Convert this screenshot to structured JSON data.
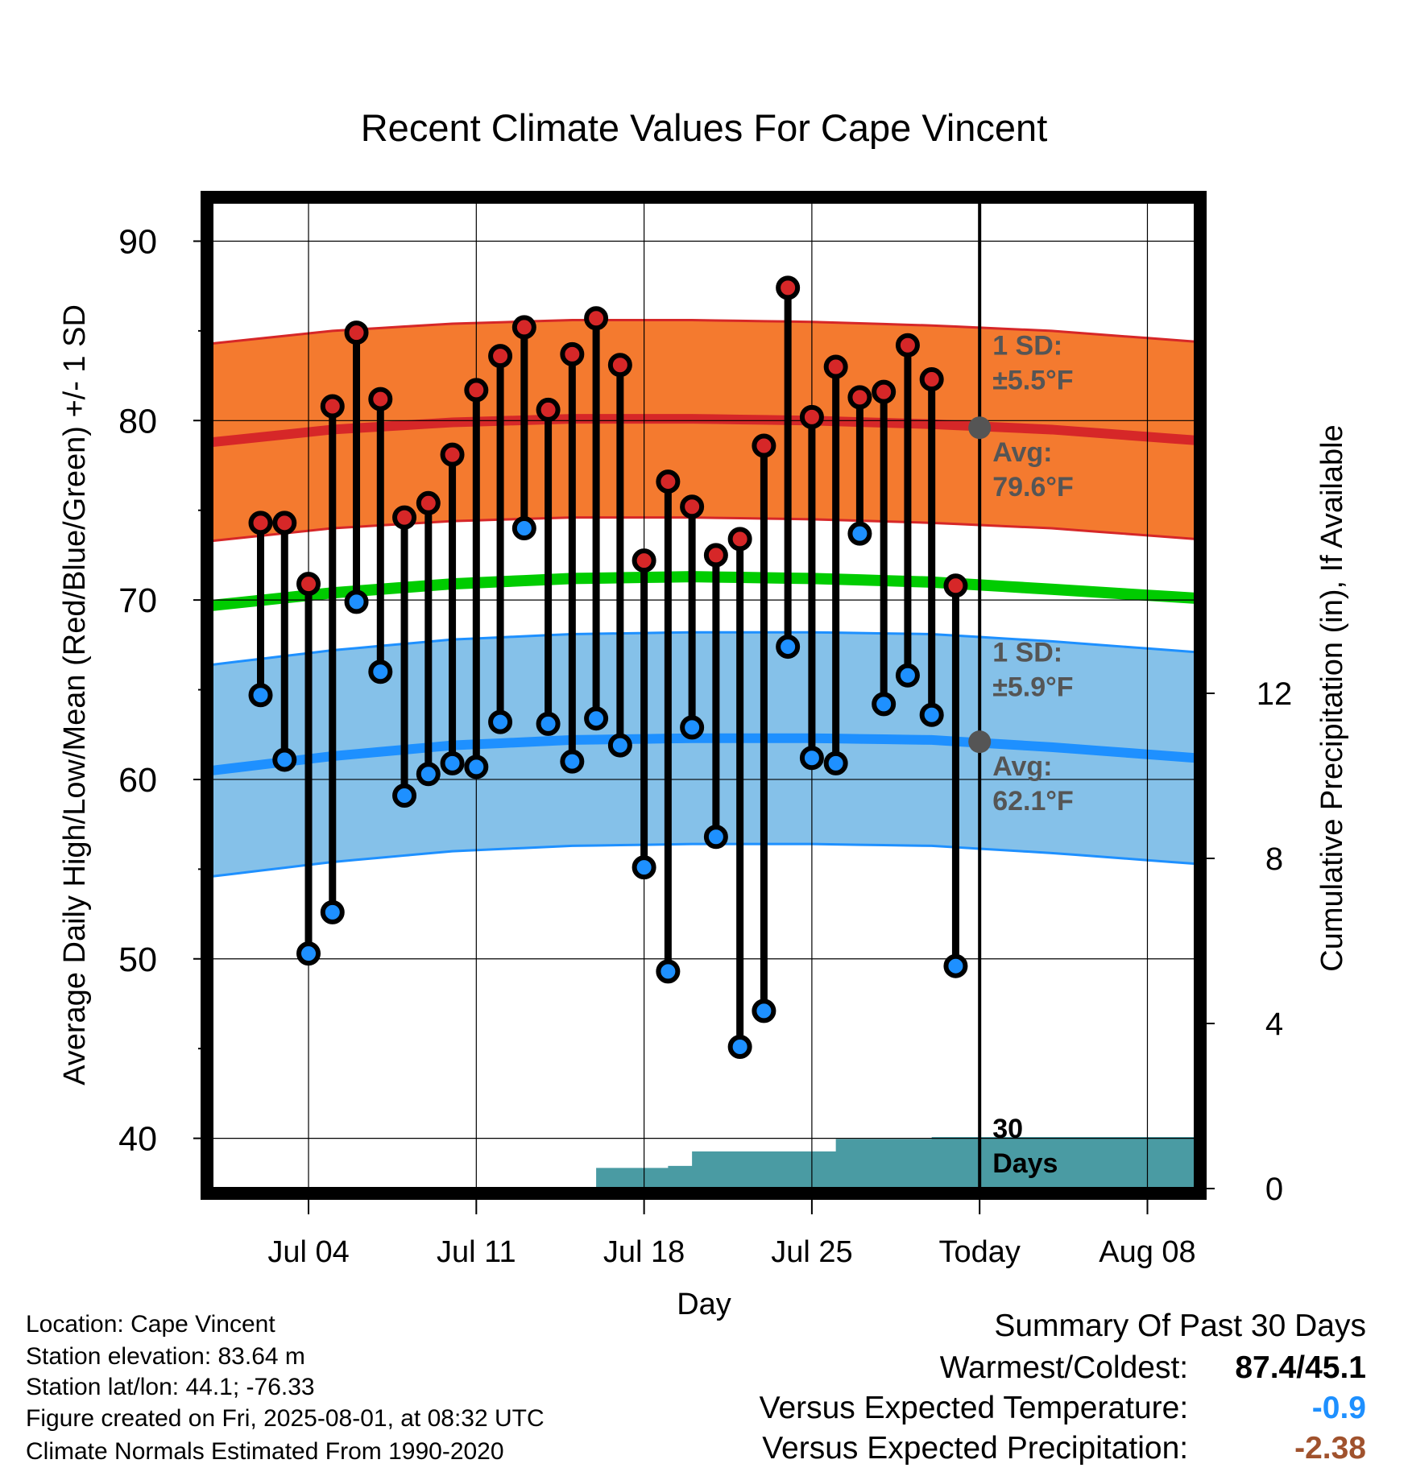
{
  "chart_data": {
    "type": "line",
    "title": "Recent Climate Values For Cape Vincent",
    "xlabel": "Day",
    "ylabel": "Average Daily High/Low/Mean (Red/Blue/Green) +/- 1 SD",
    "y2label": "Cumulative Precipitation (in), If Available",
    "ylim": [
      37.2,
      92.4
    ],
    "y_ticks": [
      40,
      50,
      60,
      70,
      80,
      90
    ],
    "y2lim": [
      0,
      24
    ],
    "y2_ticks": [
      0,
      4,
      8,
      12
    ],
    "xlim": [
      "2025-06-30",
      "2025-08-10"
    ],
    "x_ticks": [
      {
        "date": "2025-07-04",
        "label": "Jul 04"
      },
      {
        "date": "2025-07-11",
        "label": "Jul 11"
      },
      {
        "date": "2025-07-18",
        "label": "Jul 18"
      },
      {
        "date": "2025-07-25",
        "label": "Jul 25"
      },
      {
        "date": "2025-08-01",
        "label": "Today"
      },
      {
        "date": "2025-08-08",
        "label": "Aug 08"
      }
    ],
    "today": "2025-08-01",
    "grid": true,
    "days": [
      "2025-07-02",
      "2025-07-03",
      "2025-07-04",
      "2025-07-05",
      "2025-07-06",
      "2025-07-07",
      "2025-07-08",
      "2025-07-09",
      "2025-07-10",
      "2025-07-11",
      "2025-07-12",
      "2025-07-13",
      "2025-07-14",
      "2025-07-15",
      "2025-07-16",
      "2025-07-17",
      "2025-07-18",
      "2025-07-19",
      "2025-07-20",
      "2025-07-21",
      "2025-07-22",
      "2025-07-23",
      "2025-07-24",
      "2025-07-25",
      "2025-07-26",
      "2025-07-27",
      "2025-07-28",
      "2025-07-29",
      "2025-07-30",
      "2025-07-31"
    ],
    "series": [
      {
        "values": [
          74.3,
          74.3,
          70.9,
          80.8,
          84.9,
          81.2,
          74.6,
          75.4,
          78.1,
          81.7,
          83.6,
          85.2,
          80.6,
          83.7,
          85.7,
          83.1,
          72.2,
          76.6,
          75.2,
          72.5,
          73.4,
          78.6,
          87.4,
          80.2,
          83.0,
          81.3,
          81.6,
          84.2,
          82.3,
          70.8
        ],
        "color": "#d62728"
      },
      {
        "values": [
          64.7,
          61.1,
          50.3,
          52.6,
          69.9,
          66.0,
          59.1,
          60.3,
          60.9,
          60.7,
          63.2,
          74.0,
          63.1,
          61.0,
          63.4,
          61.9,
          55.1,
          49.3,
          62.9,
          56.8,
          45.1,
          47.1,
          67.4,
          61.2,
          60.9,
          73.7,
          64.2,
          65.8,
          63.6,
          49.6
        ],
        "color": "#1e90ff"
      }
    ],
    "normals": {
      "x": [
        "2025-06-30",
        "2025-07-05",
        "2025-07-10",
        "2025-07-15",
        "2025-07-20",
        "2025-07-25",
        "2025-07-30",
        "2025-08-04",
        "2025-08-10"
      ],
      "high_avg": [
        78.8,
        79.5,
        79.9,
        80.1,
        80.1,
        80.0,
        79.8,
        79.5,
        78.9
      ],
      "high_sd": 5.5,
      "low_avg": [
        60.5,
        61.3,
        61.9,
        62.2,
        62.3,
        62.3,
        62.2,
        61.8,
        61.2
      ],
      "low_sd": 5.9,
      "mean_avg": [
        69.7,
        70.4,
        70.9,
        71.2,
        71.3,
        71.2,
        71.0,
        70.6,
        70.1
      ],
      "high_color": "#f47a2f",
      "low_color": "#85c1e9",
      "mean_color": "#00cc00"
    },
    "precip": {
      "x": [
        "2025-07-15",
        "2025-07-16",
        "2025-07-19",
        "2025-07-20",
        "2025-07-24",
        "2025-07-25",
        "2025-07-26",
        "2025-07-30",
        "2025-08-10"
      ],
      "values": [
        0,
        0.5,
        0.55,
        0.9,
        0.9,
        0.9,
        1.2,
        1.25,
        1.25
      ],
      "color": "#4a9ba3"
    },
    "annotations": {
      "high_sd_label": [
        "1 SD:",
        "±5.5°F"
      ],
      "high_avg_label": [
        "Avg:",
        "79.6°F"
      ],
      "low_sd_label": [
        "1 SD:",
        "±5.9°F"
      ],
      "low_avg_label": [
        "Avg:",
        "62.1°F"
      ],
      "high_avg_today": 79.6,
      "low_avg_today": 62.1,
      "days_label": [
        "30",
        "Days"
      ]
    }
  },
  "info": {
    "location": "Location: Cape Vincent",
    "elevation": "Station elevation: 83.64 m",
    "latlon": "Station lat/lon: 44.1; -76.33",
    "created": "Figure created on Fri, 2025-08-01, at 08:32 UTC",
    "normals": "Climate Normals Estimated From 1990-2020"
  },
  "summary": {
    "heading": "Summary Of Past 30 Days",
    "warmest_label": "Warmest/Coldest:",
    "warmest_value": "87.4/45.1",
    "temp_label": "Versus Expected Temperature:",
    "temp_value": "-0.9",
    "temp_color": "#1e90ff",
    "precip_label": "Versus Expected Precipitation:",
    "precip_value": "-2.38",
    "precip_color": "#a0522d"
  }
}
